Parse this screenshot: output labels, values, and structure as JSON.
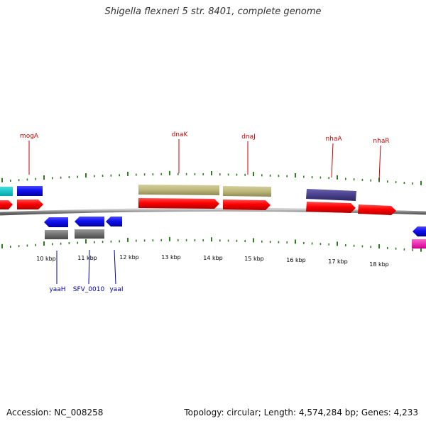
{
  "title": "Shigella flexneri 5 str. 8401, complete genome",
  "footer": {
    "accession": "Accession: NC_008258",
    "stats": "Topology: circular; Length: 4,574,284 bp; Genes: 4,233"
  },
  "colors": {
    "forward_label": "#cc0000",
    "reverse_label": "#0000aa",
    "backbone": "#888888",
    "tick": "#2e7d1f"
  },
  "scale_ticks": [
    {
      "label": "10 kbp"
    },
    {
      "label": "11 kbp"
    },
    {
      "label": "12 kbp"
    },
    {
      "label": "13 kbp"
    },
    {
      "label": "14 kbp"
    },
    {
      "label": "15 kbp"
    },
    {
      "label": "16 kbp"
    },
    {
      "label": "17 kbp"
    },
    {
      "label": "18 kbp"
    }
  ],
  "forward_gene_labels": [
    {
      "name": "mogA"
    },
    {
      "name": "dnaK"
    },
    {
      "name": "dnaJ"
    },
    {
      "name": "nhaA"
    },
    {
      "name": "nhaR"
    }
  ],
  "reverse_gene_labels": [
    {
      "name": "yaaH"
    },
    {
      "name": "SFV_0010"
    },
    {
      "name": "yaaI"
    }
  ]
}
